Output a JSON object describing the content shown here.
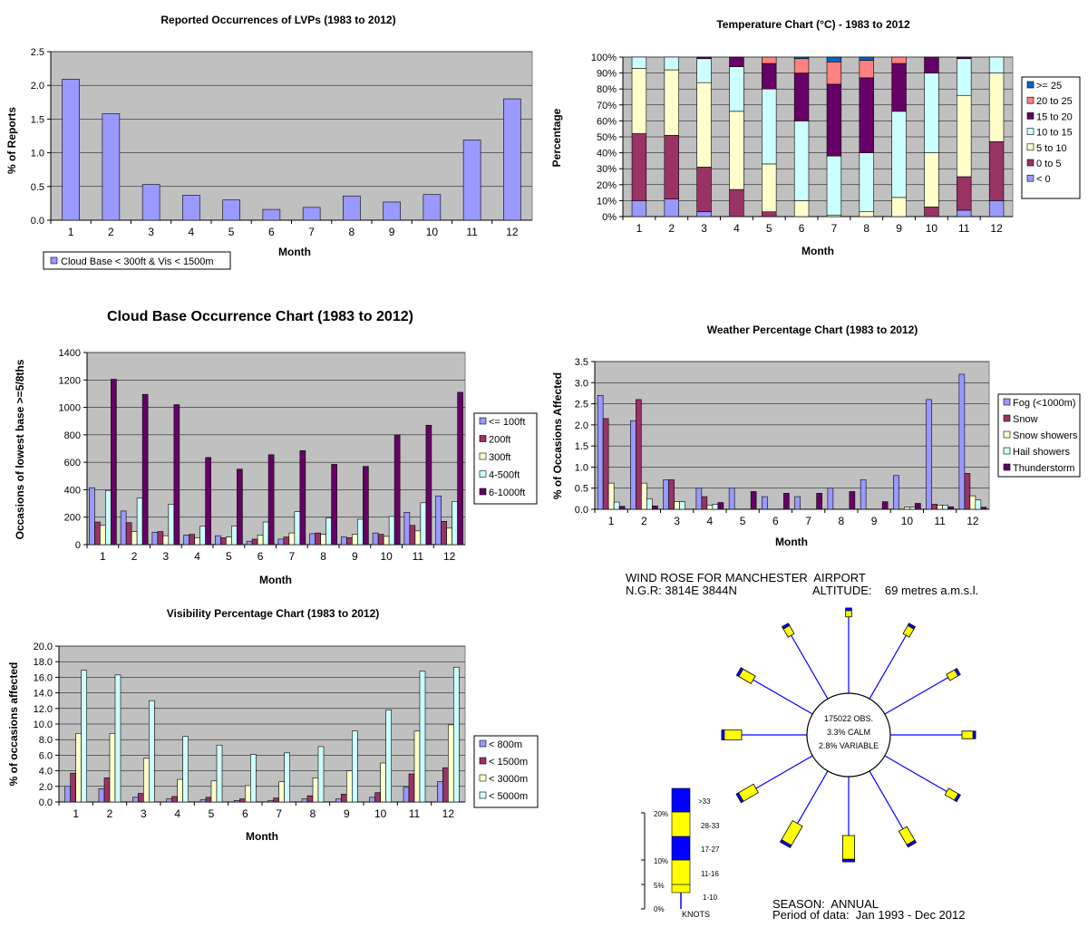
{
  "colors": {
    "plot_bg": "#c0c0c0",
    "lvp": "#9999ff",
    "temp": [
      "#9999ff",
      "#993366",
      "#ffffcc",
      "#ccffff",
      "#660066",
      "#ff8080",
      "#0066cc"
    ],
    "cloud": [
      "#9999ff",
      "#993366",
      "#ffffcc",
      "#ccffff",
      "#660066"
    ],
    "weather": [
      "#9999ff",
      "#993366",
      "#ffffcc",
      "#ccffff",
      "#660066"
    ],
    "vis": [
      "#9999ff",
      "#993366",
      "#ffffcc",
      "#ccffff"
    ],
    "rose_blue": "#0000ff",
    "rose_yellow": "#ffff00"
  },
  "chart_data": [
    {
      "id": "lvp",
      "type": "bar",
      "title": "Reported Occurrences of LVPs (1983 to 2012)",
      "xlabel": "Month",
      "ylabel": "% of Reports",
      "ylim": [
        0,
        2.5
      ],
      "yticks": [
        "0.0",
        "0.5",
        "1.0",
        "1.5",
        "2.0",
        "2.5"
      ],
      "categories": [
        "1",
        "2",
        "3",
        "4",
        "5",
        "6",
        "7",
        "8",
        "9",
        "10",
        "11",
        "12"
      ],
      "series": [
        {
          "name": "Cloud Base < 300ft & Vis < 1500m",
          "values": [
            2.09,
            1.58,
            0.53,
            0.37,
            0.3,
            0.16,
            0.19,
            0.36,
            0.27,
            0.38,
            1.19,
            1.8
          ]
        }
      ],
      "legend": "bottom-left",
      "grid": true
    },
    {
      "id": "temp",
      "type": "bar",
      "stacked": true,
      "title": "Temperature Chart (°C) - 1983 to 2012",
      "xlabel": "Month",
      "ylabel": "Percentage",
      "ylim": [
        0,
        100
      ],
      "yticks": [
        "0%",
        "10%",
        "20%",
        "30%",
        "40%",
        "50%",
        "60%",
        "70%",
        "80%",
        "90%",
        "100%"
      ],
      "categories": [
        "1",
        "2",
        "3",
        "4",
        "5",
        "6",
        "7",
        "8",
        "9",
        "10",
        "11",
        "12"
      ],
      "series": [
        {
          "name": "< 0",
          "values": [
            10,
            11,
            3,
            0,
            0,
            0,
            0,
            0,
            0,
            0,
            4,
            10
          ]
        },
        {
          "name": "0 to 5",
          "values": [
            42,
            40,
            28,
            17,
            3,
            0,
            0,
            0,
            0,
            6,
            21,
            37
          ]
        },
        {
          "name": "5 to 10",
          "values": [
            41,
            41,
            53,
            49,
            30,
            10,
            1,
            3,
            12,
            34,
            51,
            43
          ]
        },
        {
          "name": "10 to 15",
          "values": [
            7,
            8,
            15,
            28,
            47,
            50,
            37,
            37,
            54,
            50,
            23,
            10
          ]
        },
        {
          "name": "15 to 20",
          "values": [
            0,
            0,
            1,
            6,
            16,
            30,
            45,
            47,
            30,
            10,
            1,
            0
          ]
        },
        {
          "name": "20 to 25",
          "values": [
            0,
            0,
            0,
            0,
            4,
            9,
            14,
            11,
            4,
            0,
            0,
            0
          ]
        },
        {
          "name": ">= 25",
          "values": [
            0,
            0,
            0,
            0,
            0,
            1,
            3,
            2,
            0,
            0,
            0,
            0
          ]
        }
      ],
      "legend_order": [
        ">= 25",
        "20 to 25",
        "15 to 20",
        "10 to 15",
        "5 to 10",
        "0 to 5",
        "< 0"
      ],
      "legend": "right",
      "grid": true
    },
    {
      "id": "cloud",
      "type": "bar",
      "title": "Cloud Base Occurrence Chart (1983 to 2012)",
      "xlabel": "Month",
      "ylabel": "Occasions of lowest base >=5/8ths",
      "ylim": [
        0,
        1400
      ],
      "yticks": [
        "0",
        "200",
        "400",
        "600",
        "800",
        "1000",
        "1200",
        "1400"
      ],
      "categories": [
        "1",
        "2",
        "3",
        "4",
        "5",
        "6",
        "7",
        "8",
        "9",
        "10",
        "11",
        "12"
      ],
      "series": [
        {
          "name": "<= 100ft",
          "values": [
            415,
            245,
            90,
            70,
            65,
            25,
            40,
            80,
            55,
            85,
            235,
            355
          ]
        },
        {
          "name": "200ft",
          "values": [
            165,
            160,
            95,
            75,
            50,
            40,
            55,
            85,
            50,
            75,
            140,
            170
          ]
        },
        {
          "name": "300ft",
          "values": [
            140,
            95,
            65,
            50,
            55,
            70,
            85,
            75,
            75,
            60,
            100,
            120
          ]
        },
        {
          "name": "4-500ft",
          "values": [
            395,
            340,
            295,
            135,
            135,
            165,
            240,
            195,
            185,
            205,
            305,
            315
          ]
        },
        {
          "name": "6-1000ft",
          "values": [
            1205,
            1095,
            1020,
            635,
            550,
            655,
            685,
            585,
            570,
            800,
            870,
            1110
          ]
        }
      ],
      "legend": "right",
      "grid": true
    },
    {
      "id": "weather",
      "type": "bar",
      "title": "Weather Percentage Chart (1983 to 2012)",
      "xlabel": "Month",
      "ylabel": "% of Occasions Affected",
      "ylim": [
        0,
        3.5
      ],
      "yticks": [
        "0.0",
        "0.5",
        "1.0",
        "1.5",
        "2.0",
        "2.5",
        "3.0",
        "3.5"
      ],
      "categories": [
        "1",
        "2",
        "3",
        "4",
        "5",
        "6",
        "7",
        "8",
        "9",
        "10",
        "11",
        "12"
      ],
      "series": [
        {
          "name": "Fog (<1000m)",
          "values": [
            2.7,
            2.1,
            0.7,
            0.5,
            0.5,
            0.3,
            0.3,
            0.5,
            0.7,
            0.8,
            2.6,
            3.2
          ]
        },
        {
          "name": "Snow",
          "values": [
            2.15,
            2.6,
            0.7,
            0.3,
            0.0,
            0.0,
            0.0,
            0.0,
            0.0,
            0.0,
            0.12,
            0.85
          ]
        },
        {
          "name": "Snow showers",
          "values": [
            0.62,
            0.62,
            0.18,
            0.1,
            0.0,
            0.0,
            0.0,
            0.0,
            0.0,
            0.05,
            0.1,
            0.32
          ]
        },
        {
          "name": "Hail showers",
          "values": [
            0.17,
            0.25,
            0.18,
            0.12,
            0.0,
            0.0,
            0.0,
            0.0,
            0.0,
            0.05,
            0.1,
            0.22
          ]
        },
        {
          "name": "Thunderstorm",
          "values": [
            0.07,
            0.08,
            0.0,
            0.16,
            0.42,
            0.38,
            0.38,
            0.42,
            0.18,
            0.14,
            0.06,
            0.05
          ]
        }
      ],
      "legend": "right",
      "grid": true
    },
    {
      "id": "vis",
      "type": "bar",
      "title": "Visibility Percentage Chart (1983 to 2012)",
      "xlabel": "Month",
      "ylabel": "% of occasions affected",
      "ylim": [
        0,
        20
      ],
      "yticks": [
        "0.0",
        "2.0",
        "4.0",
        "6.0",
        "8.0",
        "10.0",
        "12.0",
        "14.0",
        "16.0",
        "18.0",
        "20.0"
      ],
      "categories": [
        "1",
        "2",
        "3",
        "4",
        "5",
        "6",
        "7",
        "8",
        "9",
        "10",
        "11",
        "12"
      ],
      "series": [
        {
          "name": "< 800m",
          "values": [
            2.0,
            1.7,
            0.6,
            0.4,
            0.3,
            0.2,
            0.2,
            0.4,
            0.4,
            0.6,
            1.9,
            2.6
          ]
        },
        {
          "name": "< 1500m",
          "values": [
            3.7,
            3.1,
            1.1,
            0.7,
            0.6,
            0.4,
            0.5,
            0.8,
            1.0,
            1.2,
            3.6,
            4.4
          ]
        },
        {
          "name": "< 3000m",
          "values": [
            8.8,
            8.8,
            5.6,
            2.9,
            2.7,
            2.1,
            2.6,
            3.1,
            4.0,
            5.0,
            9.1,
            9.9
          ]
        },
        {
          "name": "< 5000m",
          "values": [
            16.9,
            16.3,
            13.0,
            8.4,
            7.3,
            6.1,
            6.3,
            7.1,
            9.1,
            11.8,
            16.8,
            17.3
          ]
        }
      ],
      "legend": "right",
      "grid": true
    }
  ],
  "wind_rose": {
    "title": "WIND ROSE FOR MANCHESTER  AIRPORT",
    "ngr": "N.G.R: 3814E 3844N",
    "altitude": "ALTITUDE:    69 metres a.m.s.l.",
    "obs": "175022 OBS.",
    "calm": "3.3% CALM",
    "variable": "2.8% VARIABLE",
    "season": "SEASON:  ANNUAL",
    "period": "Period of data:  Jan 1993 - Dec 2012",
    "scale_ticks": [
      "20%",
      "10%",
      "5%",
      "0%"
    ],
    "speed_bands": [
      ">33",
      "28-33",
      "17-27",
      "11-16",
      "1-10"
    ],
    "units": "KNOTS",
    "spokes": [
      {
        "dir_deg": 0,
        "total_pct": 0.5
      },
      {
        "dir_deg": 30,
        "total_pct": 1.5
      },
      {
        "dir_deg": 60,
        "total_pct": 1.5
      },
      {
        "dir_deg": 90,
        "total_pct": 2.0
      },
      {
        "dir_deg": 120,
        "total_pct": 2.0
      },
      {
        "dir_deg": 150,
        "total_pct": 3.5
      },
      {
        "dir_deg": 180,
        "total_pct": 6.0
      },
      {
        "dir_deg": 210,
        "total_pct": 5.5
      },
      {
        "dir_deg": 240,
        "total_pct": 4.0
      },
      {
        "dir_deg": 270,
        "total_pct": 4.0
      },
      {
        "dir_deg": 300,
        "total_pct": 3.0
      },
      {
        "dir_deg": 330,
        "total_pct": 1.5
      }
    ]
  }
}
